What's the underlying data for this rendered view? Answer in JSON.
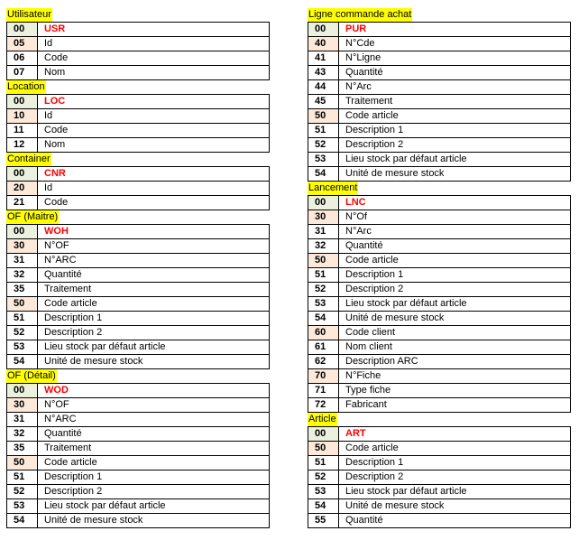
{
  "left": [
    {
      "title": "Utilisateur",
      "rows": [
        {
          "num": "00",
          "label": "USR",
          "kind": "head"
        },
        {
          "num": "05",
          "label": "Id",
          "kind": "alt"
        },
        {
          "num": "06",
          "label": "Code",
          "kind": ""
        },
        {
          "num": "07",
          "label": "Nom",
          "kind": ""
        }
      ]
    },
    {
      "title": "Location",
      "rows": [
        {
          "num": "00",
          "label": "LOC",
          "kind": "head"
        },
        {
          "num": "10",
          "label": "Id",
          "kind": "alt"
        },
        {
          "num": "11",
          "label": "Code",
          "kind": ""
        },
        {
          "num": "12",
          "label": "Nom",
          "kind": ""
        }
      ]
    },
    {
      "title": "Container",
      "rows": [
        {
          "num": "00",
          "label": "CNR",
          "kind": "head"
        },
        {
          "num": "20",
          "label": "Id",
          "kind": "alt"
        },
        {
          "num": "21",
          "label": "Code",
          "kind": ""
        }
      ]
    },
    {
      "title": "OF (Maitre)",
      "rows": [
        {
          "num": "00",
          "label": "WOH",
          "kind": "head"
        },
        {
          "num": "30",
          "label": "N°OF",
          "kind": "alt"
        },
        {
          "num": "31",
          "label": "N°ARC",
          "kind": ""
        },
        {
          "num": "32",
          "label": "Quantité",
          "kind": ""
        },
        {
          "num": "35",
          "label": "Traitement",
          "kind": ""
        },
        {
          "num": "50",
          "label": "Code article",
          "kind": "alt"
        },
        {
          "num": "51",
          "label": "Description 1",
          "kind": ""
        },
        {
          "num": "52",
          "label": "Description 2",
          "kind": ""
        },
        {
          "num": "53",
          "label": "Lieu stock par défaut article",
          "kind": ""
        },
        {
          "num": "54",
          "label": "Unité de mesure stock",
          "kind": ""
        }
      ]
    },
    {
      "title": "OF (Détail)",
      "rows": [
        {
          "num": "00",
          "label": "WOD",
          "kind": "head"
        },
        {
          "num": "30",
          "label": "N°OF",
          "kind": "alt"
        },
        {
          "num": "31",
          "label": "N°ARC",
          "kind": ""
        },
        {
          "num": "32",
          "label": "Quantité",
          "kind": ""
        },
        {
          "num": "35",
          "label": "Traitement",
          "kind": ""
        },
        {
          "num": "50",
          "label": "Code article",
          "kind": "alt"
        },
        {
          "num": "51",
          "label": "Description 1",
          "kind": ""
        },
        {
          "num": "52",
          "label": "Description 2",
          "kind": ""
        },
        {
          "num": "53",
          "label": "Lieu stock par défaut article",
          "kind": ""
        },
        {
          "num": "54",
          "label": "Unité de mesure stock",
          "kind": ""
        }
      ]
    }
  ],
  "right": [
    {
      "title": "Ligne commande achat",
      "rows": [
        {
          "num": "00",
          "label": "PUR",
          "kind": "head"
        },
        {
          "num": "40",
          "label": "N°Cde",
          "kind": "alt"
        },
        {
          "num": "41",
          "label": "N°Ligne",
          "kind": ""
        },
        {
          "num": "43",
          "label": "Quantité",
          "kind": ""
        },
        {
          "num": "44",
          "label": "N°Arc",
          "kind": ""
        },
        {
          "num": "45",
          "label": "Traitement",
          "kind": ""
        },
        {
          "num": "50",
          "label": "Code article",
          "kind": "alt"
        },
        {
          "num": "51",
          "label": "Description 1",
          "kind": ""
        },
        {
          "num": "52",
          "label": "Description 2",
          "kind": ""
        },
        {
          "num": "53",
          "label": "Lieu stock par défaut article",
          "kind": ""
        },
        {
          "num": "54",
          "label": "Unité de mesure stock",
          "kind": ""
        }
      ]
    },
    {
      "title": "Lancement",
      "rows": [
        {
          "num": "00",
          "label": "LNC",
          "kind": "head"
        },
        {
          "num": "30",
          "label": "N°Of",
          "kind": "alt"
        },
        {
          "num": "31",
          "label": "N°Arc",
          "kind": ""
        },
        {
          "num": "32",
          "label": "Quantité",
          "kind": ""
        },
        {
          "num": "50",
          "label": "Code article",
          "kind": "alt"
        },
        {
          "num": "51",
          "label": "Description 1",
          "kind": ""
        },
        {
          "num": "52",
          "label": "Description 2",
          "kind": ""
        },
        {
          "num": "53",
          "label": "Lieu stock par défaut article",
          "kind": ""
        },
        {
          "num": "54",
          "label": "Unité de mesure stock",
          "kind": ""
        },
        {
          "num": "60",
          "label": "Code client",
          "kind": "alt"
        },
        {
          "num": "61",
          "label": "Nom client",
          "kind": ""
        },
        {
          "num": "62",
          "label": "Description ARC",
          "kind": ""
        },
        {
          "num": "70",
          "label": "N°Fiche",
          "kind": "alt"
        },
        {
          "num": "71",
          "label": "Type fiche",
          "kind": ""
        },
        {
          "num": "72",
          "label": "Fabricant",
          "kind": ""
        }
      ]
    },
    {
      "title": "Article",
      "rows": [
        {
          "num": "00",
          "label": "ART",
          "kind": "head"
        },
        {
          "num": "50",
          "label": "Code article",
          "kind": "alt"
        },
        {
          "num": "51",
          "label": "Description 1",
          "kind": ""
        },
        {
          "num": "52",
          "label": "Description 2",
          "kind": ""
        },
        {
          "num": "53",
          "label": "Lieu stock par défaut article",
          "kind": ""
        },
        {
          "num": "54",
          "label": "Unité de mesure stock",
          "kind": ""
        },
        {
          "num": "55",
          "label": "Quantité",
          "kind": ""
        }
      ]
    }
  ],
  "colors": {
    "title_highlight": "#ffff00",
    "head_num_bg": "#ebf1de",
    "alt_num_bg": "#fde9d9",
    "head_label": "#ff0000"
  }
}
